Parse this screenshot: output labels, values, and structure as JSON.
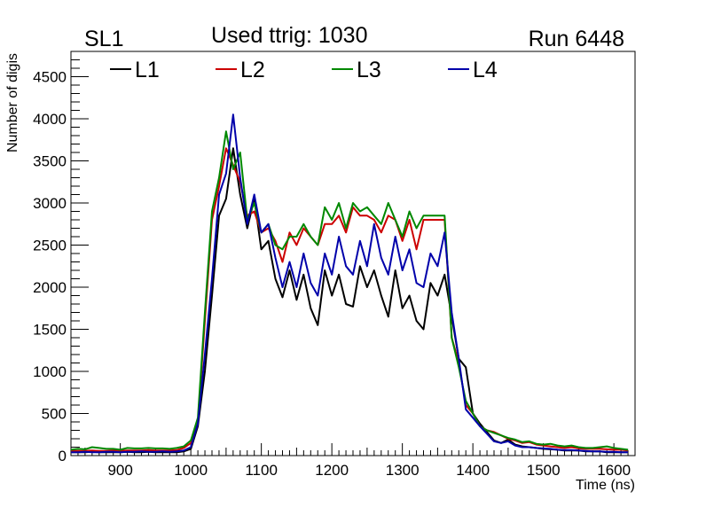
{
  "header": {
    "left_label": "SL1",
    "center_label": "Used ttrig: 1030",
    "right_label": "Run 6448"
  },
  "chart_data": {
    "type": "line",
    "xlabel": "Time (ns)",
    "ylabel": "Number of digis",
    "xlim": [
      830,
      1630
    ],
    "ylim": [
      0,
      4800
    ],
    "xticks": [
      900,
      1000,
      1100,
      1200,
      1300,
      1400,
      1500,
      1600
    ],
    "yticks": [
      0,
      500,
      1000,
      1500,
      2000,
      2500,
      3000,
      3500,
      4000,
      4500
    ],
    "grid": false,
    "legend_position": "top",
    "x": [
      830,
      840,
      850,
      860,
      870,
      880,
      890,
      900,
      910,
      920,
      930,
      940,
      950,
      960,
      970,
      980,
      990,
      1000,
      1010,
      1020,
      1030,
      1040,
      1050,
      1060,
      1070,
      1080,
      1090,
      1100,
      1110,
      1120,
      1130,
      1140,
      1150,
      1160,
      1170,
      1180,
      1190,
      1200,
      1210,
      1220,
      1230,
      1240,
      1250,
      1260,
      1270,
      1280,
      1290,
      1300,
      1310,
      1320,
      1330,
      1340,
      1350,
      1360,
      1370,
      1380,
      1390,
      1400,
      1410,
      1420,
      1430,
      1440,
      1450,
      1460,
      1470,
      1480,
      1490,
      1500,
      1510,
      1520,
      1530,
      1540,
      1550,
      1560,
      1570,
      1580,
      1590,
      1600,
      1610,
      1620
    ],
    "series": [
      {
        "name": "L1",
        "color": "#000000",
        "values": [
          40,
          40,
          40,
          45,
          40,
          40,
          40,
          40,
          45,
          40,
          40,
          45,
          40,
          40,
          40,
          40,
          50,
          80,
          350,
          1000,
          1900,
          2850,
          3050,
          3650,
          3100,
          2700,
          3050,
          2450,
          2550,
          2100,
          1880,
          2200,
          1850,
          2150,
          1750,
          1550,
          2200,
          1900,
          2150,
          1800,
          1770,
          2250,
          2000,
          2200,
          1900,
          1650,
          2200,
          1750,
          1900,
          1600,
          1500,
          2050,
          1900,
          2150,
          1650,
          1150,
          1050,
          500,
          380,
          280,
          180,
          150,
          190,
          130,
          110,
          100,
          90,
          80,
          75,
          70,
          60,
          60,
          60,
          50,
          50,
          50,
          40,
          40,
          40,
          40
        ]
      },
      {
        "name": "L2",
        "color": "#cc0000",
        "values": [
          55,
          55,
          55,
          60,
          55,
          55,
          60,
          55,
          60,
          60,
          60,
          65,
          60,
          60,
          60,
          65,
          90,
          150,
          400,
          1600,
          2800,
          3200,
          3650,
          3450,
          3250,
          2850,
          2900,
          2650,
          2700,
          2550,
          2300,
          2650,
          2500,
          2700,
          2600,
          2500,
          2750,
          2750,
          2850,
          2650,
          2950,
          2850,
          2850,
          2800,
          2650,
          2850,
          2800,
          2550,
          2800,
          2450,
          2800,
          2800,
          2800,
          2800,
          1400,
          1100,
          600,
          500,
          350,
          300,
          280,
          240,
          200,
          180,
          150,
          160,
          130,
          120,
          110,
          100,
          90,
          100,
          85,
          80,
          80,
          80,
          75,
          70,
          70,
          60
        ]
      },
      {
        "name": "L3",
        "color": "#008800",
        "values": [
          70,
          80,
          75,
          100,
          90,
          80,
          80,
          70,
          90,
          85,
          85,
          90,
          85,
          85,
          80,
          90,
          110,
          180,
          450,
          1700,
          2900,
          3300,
          3850,
          3400,
          3600,
          2800,
          3000,
          2650,
          2750,
          2500,
          2450,
          2600,
          2600,
          2750,
          2600,
          2500,
          2950,
          2800,
          3000,
          2700,
          3000,
          2900,
          2950,
          2850,
          2750,
          3000,
          2800,
          2600,
          2900,
          2700,
          2850,
          2850,
          2850,
          2850,
          1400,
          1050,
          650,
          500,
          350,
          300,
          270,
          240,
          210,
          190,
          160,
          170,
          140,
          130,
          140,
          120,
          110,
          120,
          100,
          90,
          90,
          100,
          110,
          90,
          80,
          70
        ]
      },
      {
        "name": "L4",
        "color": "#0000aa",
        "values": [
          40,
          40,
          45,
          40,
          40,
          45,
          45,
          40,
          45,
          45,
          50,
          45,
          45,
          50,
          45,
          50,
          60,
          100,
          380,
          1200,
          2100,
          3100,
          3350,
          4050,
          3300,
          2750,
          3100,
          2650,
          2750,
          2350,
          2000,
          2300,
          2000,
          2400,
          2050,
          1900,
          2400,
          2150,
          2600,
          2250,
          2150,
          2550,
          2250,
          2750,
          2350,
          2150,
          2600,
          2200,
          2450,
          2050,
          2000,
          2400,
          2250,
          2650,
          1700,
          1150,
          550,
          450,
          350,
          260,
          170,
          150,
          170,
          120,
          100,
          100,
          90,
          85,
          80,
          70,
          65,
          65,
          60,
          55,
          50,
          50,
          45,
          45,
          40,
          40
        ]
      }
    ]
  }
}
